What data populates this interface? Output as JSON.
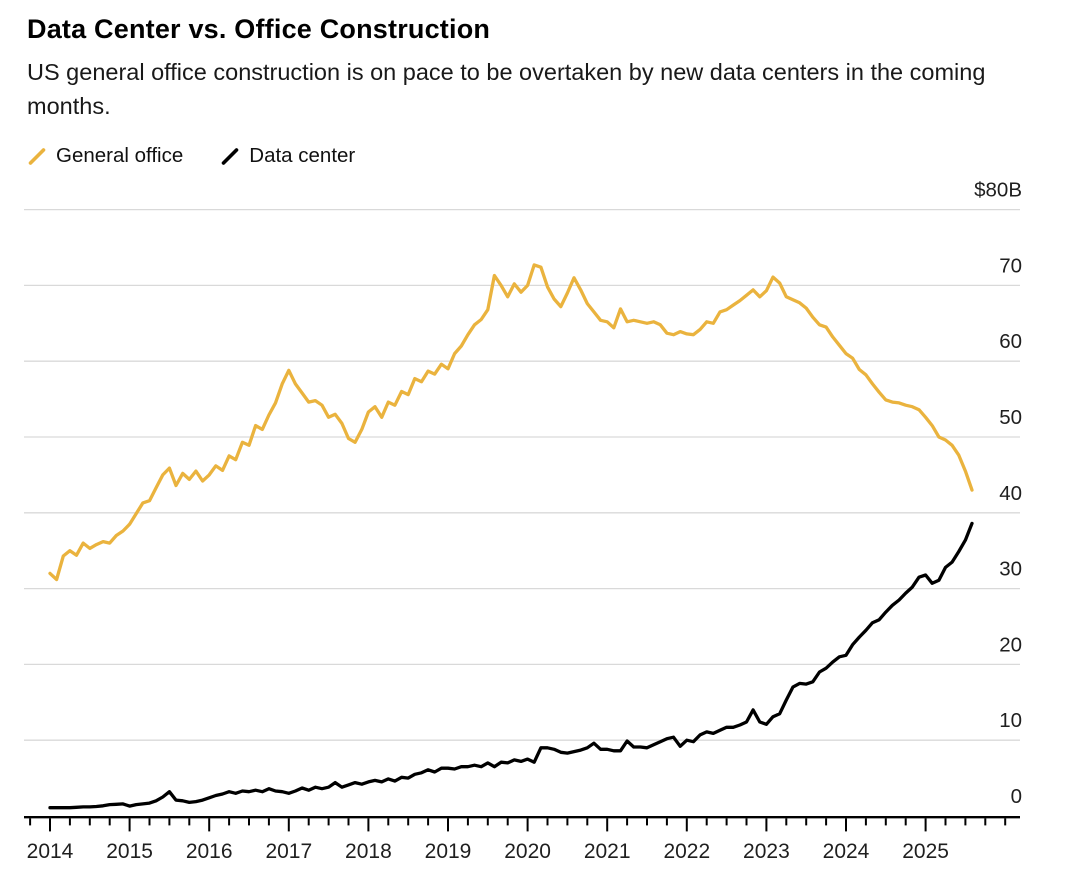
{
  "header": {
    "title": "Data Center vs. Office Construction",
    "subtitle": "US general office construction is on pace to be overtaken by new data centers in the coming months."
  },
  "legend": [
    {
      "label": "General office",
      "color": "#EAB33E"
    },
    {
      "label": "Data center",
      "color": "#000000"
    }
  ],
  "chart_data": {
    "type": "line",
    "unit": "USD billions (construction spending, annualized)",
    "x_start": {
      "year": 2014,
      "month": 1
    },
    "x_frequency": "monthly",
    "xlim": [
      2013.75,
      2026.0
    ],
    "ylim": [
      0,
      80
    ],
    "grid": true,
    "legend_position": "top-left",
    "y_gridlines": [
      0,
      10,
      20,
      30,
      40,
      50,
      60,
      70,
      80
    ],
    "y_tick_labels": [
      "0",
      "10",
      "20",
      "30",
      "40",
      "50",
      "60",
      "70",
      "$80B"
    ],
    "x_tick_years": [
      2014,
      2015,
      2016,
      2017,
      2018,
      2019,
      2020,
      2021,
      2022,
      2023,
      2024,
      2025
    ],
    "series": [
      {
        "name": "General office",
        "color": "#EAB33E",
        "values": [
          32.0,
          31.2,
          34.3,
          35.0,
          34.4,
          36.0,
          35.3,
          35.8,
          36.2,
          36.0,
          37.0,
          37.6,
          38.5,
          39.9,
          41.3,
          41.6,
          43.3,
          45.0,
          45.9,
          43.6,
          45.2,
          44.4,
          45.5,
          44.2,
          45.0,
          46.2,
          45.6,
          47.5,
          47.0,
          49.3,
          48.9,
          51.5,
          51.0,
          52.9,
          54.5,
          57.0,
          58.8,
          57.0,
          55.8,
          54.6,
          54.8,
          54.2,
          52.6,
          53.0,
          51.8,
          49.8,
          49.3,
          51.0,
          53.3,
          54.0,
          52.6,
          54.6,
          54.2,
          56.0,
          55.6,
          57.7,
          57.3,
          58.7,
          58.3,
          59.6,
          59.0,
          61.0,
          62.0,
          63.5,
          64.8,
          65.5,
          66.8,
          71.3,
          70.0,
          68.5,
          70.2,
          69.1,
          70.0,
          72.7,
          72.4,
          69.8,
          68.2,
          67.2,
          69.0,
          71.0,
          69.4,
          67.6,
          66.5,
          65.4,
          65.2,
          64.4,
          66.9,
          65.2,
          65.4,
          65.2,
          65.0,
          65.2,
          64.8,
          63.7,
          63.5,
          63.9,
          63.6,
          63.5,
          64.2,
          65.2,
          65.0,
          66.5,
          66.8,
          67.4,
          68.0,
          68.7,
          69.4,
          68.5,
          69.3,
          71.1,
          70.3,
          68.5,
          68.1,
          67.7,
          67.0,
          65.8,
          64.8,
          64.5,
          63.2,
          62.1,
          61.0,
          60.4,
          58.9,
          58.2,
          57.0,
          55.9,
          54.9,
          54.6,
          54.5,
          54.2,
          54.0,
          53.6,
          52.6,
          51.5,
          50.0,
          49.6,
          48.9,
          47.6,
          45.5,
          43.0
        ]
      },
      {
        "name": "Data center",
        "color": "#000000",
        "values": [
          1.1,
          1.1,
          1.1,
          1.1,
          1.15,
          1.2,
          1.2,
          1.25,
          1.35,
          1.5,
          1.55,
          1.6,
          1.3,
          1.5,
          1.6,
          1.7,
          2.0,
          2.5,
          3.2,
          2.1,
          2.0,
          1.8,
          1.9,
          2.1,
          2.4,
          2.7,
          2.9,
          3.2,
          3.0,
          3.3,
          3.2,
          3.4,
          3.2,
          3.6,
          3.3,
          3.2,
          3.0,
          3.3,
          3.7,
          3.4,
          3.8,
          3.6,
          3.8,
          4.4,
          3.8,
          4.1,
          4.4,
          4.2,
          4.5,
          4.7,
          4.5,
          4.9,
          4.6,
          5.1,
          5.0,
          5.5,
          5.7,
          6.1,
          5.8,
          6.3,
          6.3,
          6.2,
          6.5,
          6.5,
          6.7,
          6.5,
          7.0,
          6.5,
          7.1,
          7.0,
          7.4,
          7.2,
          7.5,
          7.1,
          9.0,
          9.0,
          8.8,
          8.4,
          8.3,
          8.5,
          8.7,
          9.0,
          9.6,
          8.8,
          8.8,
          8.6,
          8.6,
          9.9,
          9.1,
          9.1,
          9.0,
          9.4,
          9.8,
          10.2,
          10.4,
          9.2,
          10.0,
          9.8,
          10.7,
          11.1,
          10.9,
          11.3,
          11.7,
          11.7,
          12.0,
          12.4,
          14.0,
          12.4,
          12.1,
          13.1,
          13.5,
          15.3,
          17.0,
          17.5,
          17.4,
          17.7,
          19.0,
          19.5,
          20.3,
          21.0,
          21.2,
          22.6,
          23.6,
          24.5,
          25.5,
          25.9,
          26.9,
          27.8,
          28.5,
          29.4,
          30.2,
          31.5,
          31.8,
          30.7,
          31.1,
          32.8,
          33.5,
          34.9,
          36.4,
          38.6
        ]
      }
    ]
  }
}
